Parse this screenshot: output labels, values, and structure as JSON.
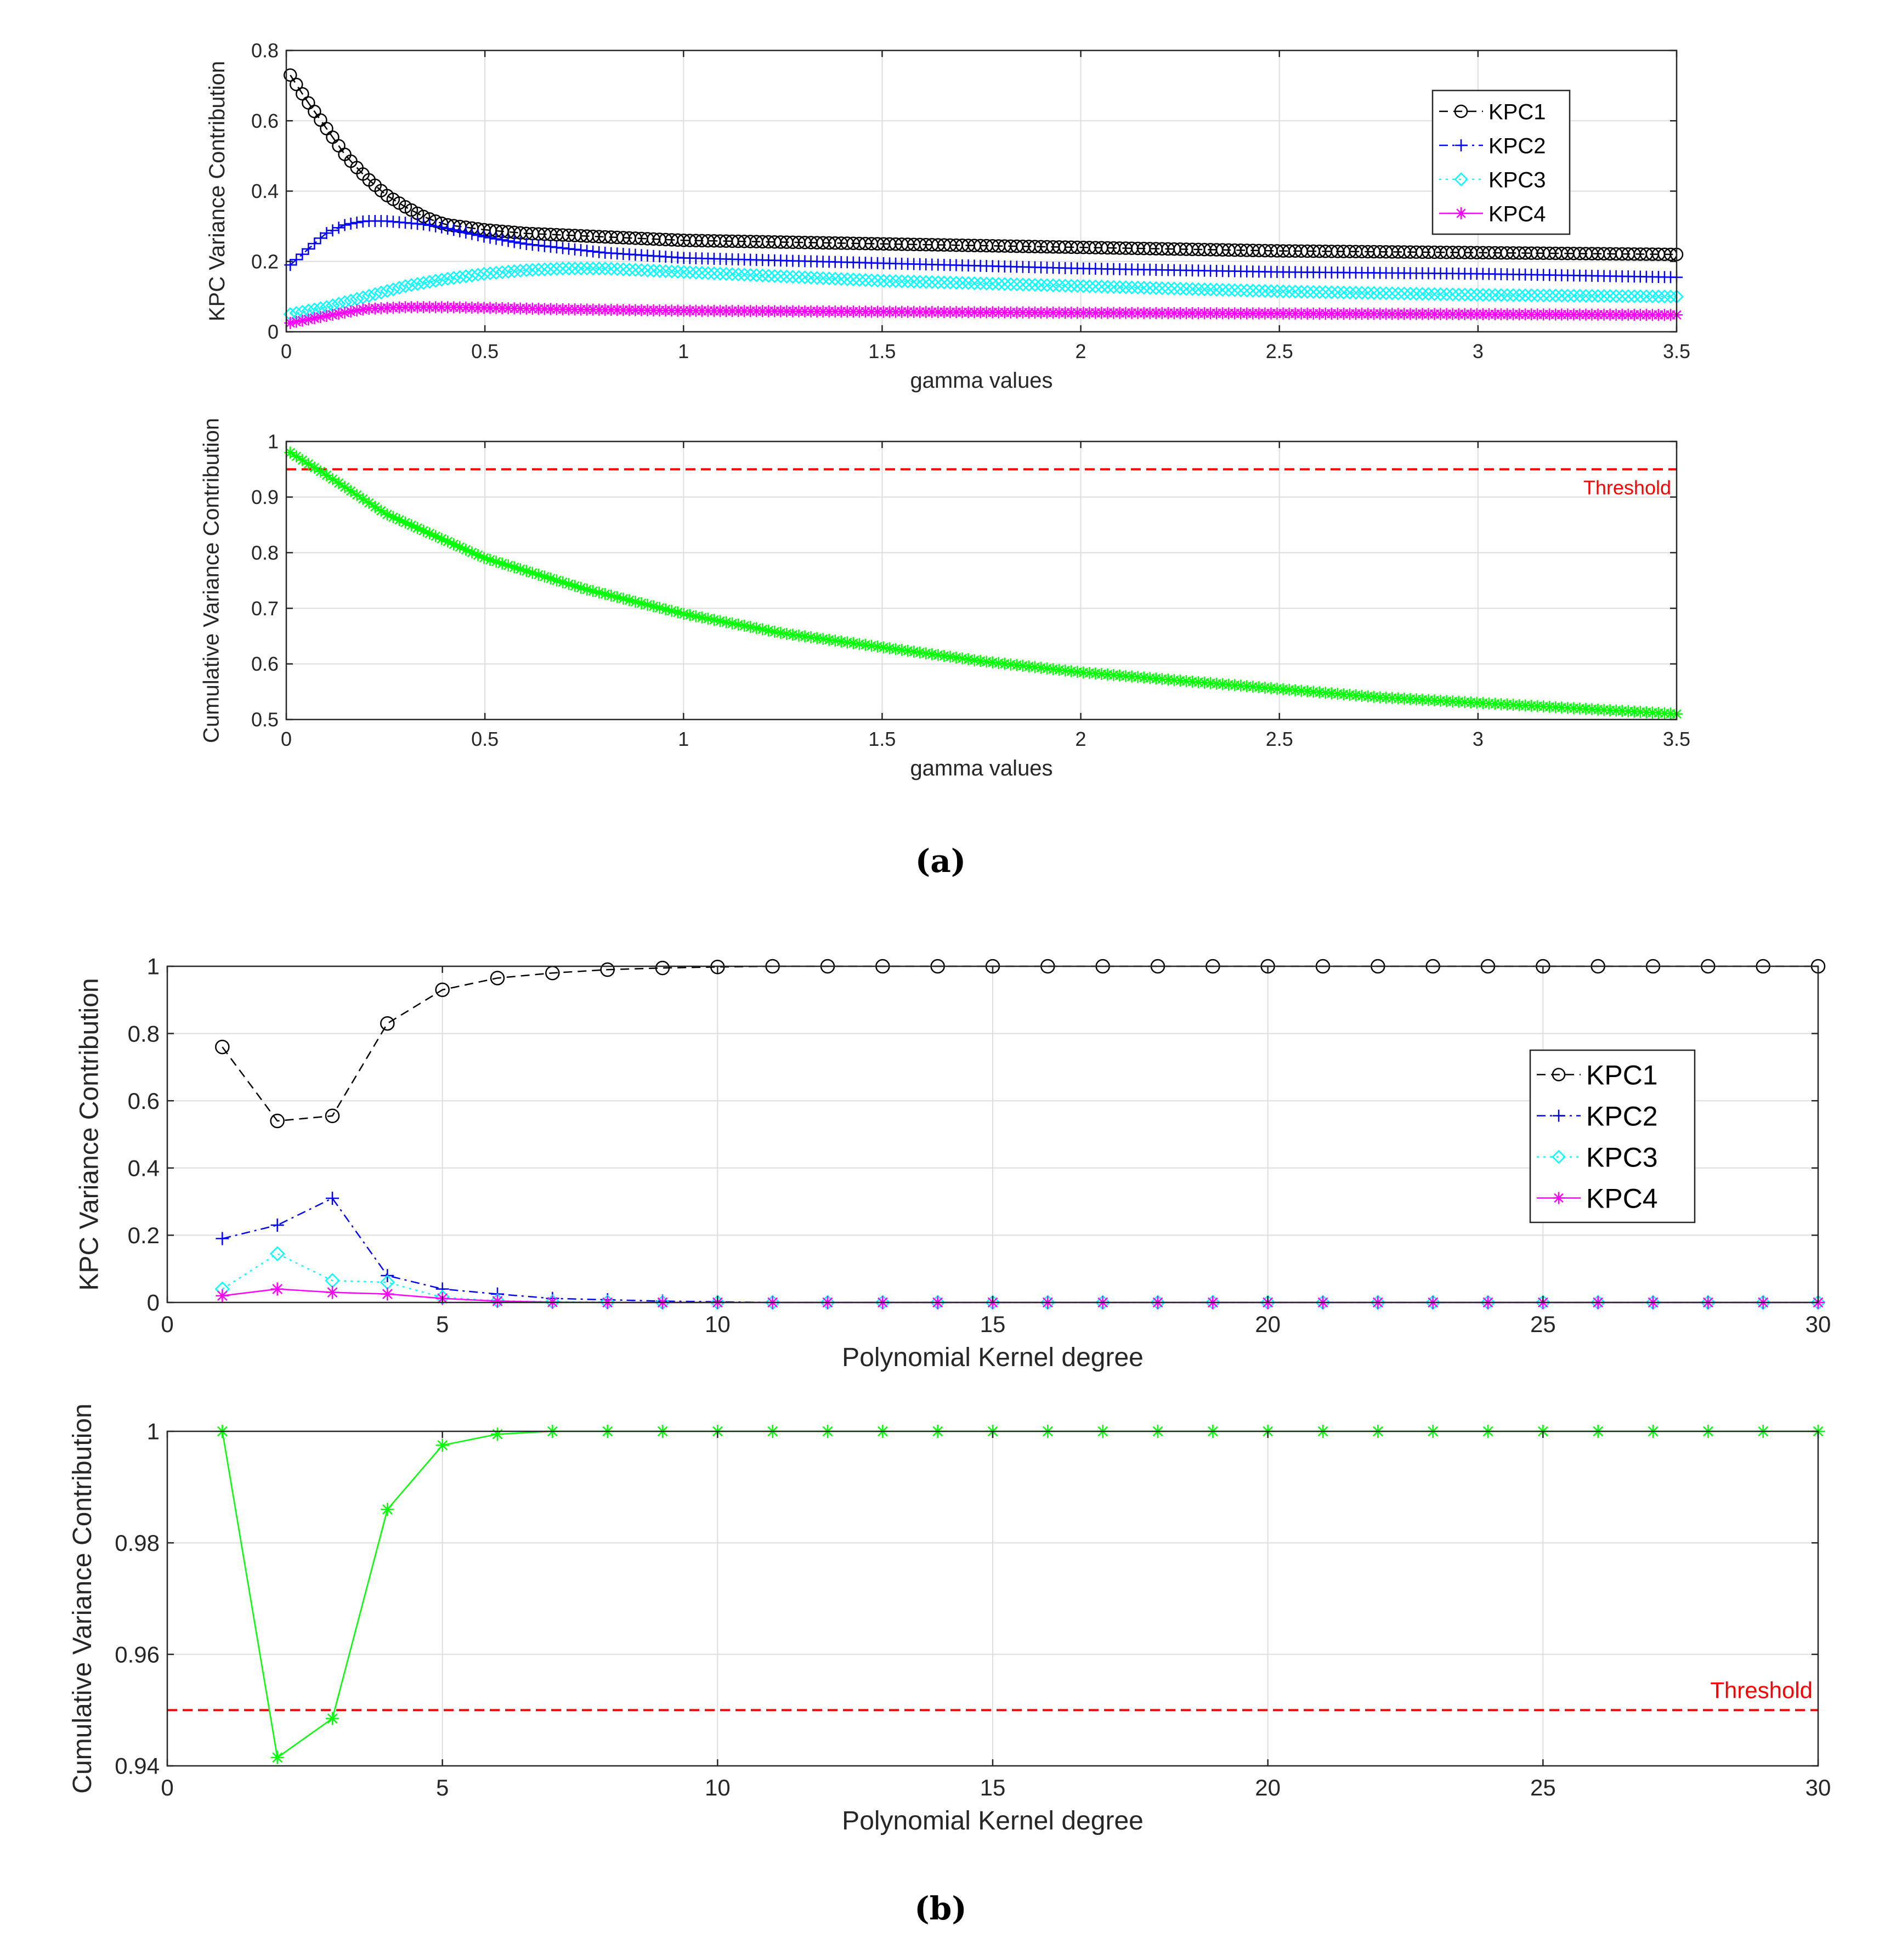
{
  "captions": {
    "a": "(a)",
    "b": "(b)"
  },
  "colors": {
    "kpc1": "#000000",
    "kpc2": "#0000ff",
    "kpc3": "#00ffff",
    "kpc4": "#ff00ff",
    "cumulative": "#00ff00",
    "threshold": "#ff0000"
  },
  "chart_data": [
    {
      "id": "a1",
      "type": "line",
      "title": "",
      "xlabel": "gamma values",
      "ylabel": "KPC Variance Contribution",
      "xlim": [
        0,
        3.5
      ],
      "ylim": [
        0,
        0.8
      ],
      "xticks": [
        0,
        0.5,
        1,
        1.5,
        2,
        2.5,
        3,
        3.5
      ],
      "xticklabels": [
        "0",
        "0.5",
        "1",
        "1.5",
        "2",
        "2.5",
        "3",
        "3.5"
      ],
      "yticks": [
        0,
        0.2,
        0.4,
        0.6,
        0.8
      ],
      "yticklabels": [
        "0",
        "0.2",
        "0.4",
        "0.6",
        "0.8"
      ],
      "grid": true,
      "legend_position": "top-right",
      "dense": true,
      "series": [
        {
          "name": "KPC1",
          "marker": "circle",
          "line": "dashed",
          "color": "#000000",
          "x": [
            0.01,
            0.05,
            0.1,
            0.15,
            0.2,
            0.25,
            0.3,
            0.35,
            0.4,
            0.5,
            0.6,
            0.8,
            1.0,
            1.5,
            2.0,
            2.5,
            3.0,
            3.5
          ],
          "y": [
            0.73,
            0.66,
            0.58,
            0.5,
            0.44,
            0.39,
            0.355,
            0.325,
            0.305,
            0.29,
            0.28,
            0.27,
            0.26,
            0.25,
            0.24,
            0.23,
            0.225,
            0.22
          ]
        },
        {
          "name": "KPC2",
          "marker": "plus",
          "line": "dashdot",
          "color": "#0000ff",
          "x": [
            0.01,
            0.05,
            0.1,
            0.15,
            0.2,
            0.25,
            0.3,
            0.35,
            0.4,
            0.5,
            0.6,
            0.8,
            1.0,
            1.5,
            2.0,
            2.5,
            3.0,
            3.5
          ],
          "y": [
            0.19,
            0.23,
            0.28,
            0.305,
            0.315,
            0.315,
            0.31,
            0.305,
            0.295,
            0.27,
            0.25,
            0.225,
            0.21,
            0.195,
            0.18,
            0.17,
            0.165,
            0.155
          ]
        },
        {
          "name": "KPC3",
          "marker": "diamond",
          "line": "dotted",
          "color": "#00ffff",
          "x": [
            0.01,
            0.1,
            0.2,
            0.3,
            0.4,
            0.5,
            0.6,
            0.7,
            0.8,
            1.0,
            1.5,
            2.0,
            2.5,
            3.0,
            3.5
          ],
          "y": [
            0.05,
            0.07,
            0.1,
            0.13,
            0.15,
            0.165,
            0.175,
            0.18,
            0.18,
            0.17,
            0.145,
            0.13,
            0.115,
            0.105,
            0.1
          ]
        },
        {
          "name": "KPC4",
          "marker": "asterisk",
          "line": "solid",
          "color": "#ff00ff",
          "x": [
            0.01,
            0.1,
            0.2,
            0.3,
            0.4,
            0.5,
            0.7,
            1.0,
            1.5,
            2.0,
            2.5,
            3.0,
            3.5
          ],
          "y": [
            0.025,
            0.045,
            0.065,
            0.07,
            0.07,
            0.068,
            0.064,
            0.06,
            0.057,
            0.054,
            0.052,
            0.05,
            0.048
          ]
        }
      ]
    },
    {
      "id": "a2",
      "type": "line",
      "title": "",
      "xlabel": "gamma values",
      "ylabel": "Cumulative Variance Contribution",
      "xlim": [
        0,
        3.5
      ],
      "ylim": [
        0.5,
        1
      ],
      "xticks": [
        0,
        0.5,
        1,
        1.5,
        2,
        2.5,
        3,
        3.5
      ],
      "xticklabels": [
        "0",
        "0.5",
        "1",
        "1.5",
        "2",
        "2.5",
        "3",
        "3.5"
      ],
      "yticks": [
        0.5,
        0.6,
        0.7,
        0.8,
        0.9,
        1
      ],
      "yticklabels": [
        "0.5",
        "0.6",
        "0.7",
        "0.8",
        "0.9",
        "1"
      ],
      "grid": true,
      "dense": true,
      "threshold": {
        "value": 0.95,
        "label": "Threshold"
      },
      "series": [
        {
          "name": "Cumulative",
          "marker": "asterisk",
          "line": "solid",
          "color": "#00ff00",
          "x": [
            0.01,
            0.1,
            0.25,
            0.5,
            0.75,
            1.0,
            1.25,
            1.5,
            1.75,
            2.0,
            2.25,
            2.5,
            2.75,
            3.0,
            3.25,
            3.5
          ],
          "y": [
            0.98,
            0.94,
            0.87,
            0.79,
            0.735,
            0.69,
            0.655,
            0.63,
            0.605,
            0.585,
            0.57,
            0.555,
            0.54,
            0.53,
            0.52,
            0.51
          ]
        }
      ]
    },
    {
      "id": "b1",
      "type": "line",
      "title": "",
      "xlabel": "Polynomial Kernel degree",
      "ylabel": "KPC Variance Contribution",
      "xlim": [
        0,
        30
      ],
      "ylim": [
        0,
        1
      ],
      "xticks": [
        0,
        5,
        10,
        15,
        20,
        25,
        30
      ],
      "xticklabels": [
        "0",
        "5",
        "10",
        "15",
        "20",
        "25",
        "30"
      ],
      "yticks": [
        0,
        0.2,
        0.4,
        0.6,
        0.8,
        1
      ],
      "yticklabels": [
        "0",
        "0.2",
        "0.4",
        "0.6",
        "0.8",
        "1"
      ],
      "grid": true,
      "legend_position": "middle-right",
      "dense": false,
      "series": [
        {
          "name": "KPC1",
          "marker": "circle",
          "line": "dashed",
          "color": "#000000",
          "x": [
            1,
            2,
            3,
            4,
            5,
            6,
            7,
            8,
            9,
            10,
            11,
            12,
            13,
            14,
            15,
            16,
            17,
            18,
            19,
            20,
            21,
            22,
            23,
            24,
            25,
            26,
            27,
            28,
            29,
            30
          ],
          "y": [
            0.76,
            0.54,
            0.555,
            0.83,
            0.93,
            0.965,
            0.98,
            0.99,
            0.995,
            0.998,
            1,
            1,
            1,
            1,
            1,
            1,
            1,
            1,
            1,
            1,
            1,
            1,
            1,
            1,
            1,
            1,
            1,
            1,
            1,
            1
          ]
        },
        {
          "name": "KPC2",
          "marker": "plus",
          "line": "dashdot",
          "color": "#0000ff",
          "x": [
            1,
            2,
            3,
            4,
            5,
            6,
            7,
            8,
            9,
            10,
            11,
            12,
            13,
            14,
            15,
            16,
            17,
            18,
            19,
            20,
            21,
            22,
            23,
            24,
            25,
            26,
            27,
            28,
            29,
            30
          ],
          "y": [
            0.19,
            0.23,
            0.31,
            0.08,
            0.04,
            0.025,
            0.012,
            0.008,
            0.004,
            0.002,
            0,
            0,
            0,
            0,
            0,
            0,
            0,
            0,
            0,
            0,
            0,
            0,
            0,
            0,
            0,
            0,
            0,
            0,
            0,
            0
          ]
        },
        {
          "name": "KPC3",
          "marker": "diamond",
          "line": "dotted",
          "color": "#00ffff",
          "x": [
            1,
            2,
            3,
            4,
            5,
            6,
            7,
            8,
            9,
            10,
            11,
            12,
            13,
            14,
            15,
            16,
            17,
            18,
            19,
            20,
            21,
            22,
            23,
            24,
            25,
            26,
            27,
            28,
            29,
            30
          ],
          "y": [
            0.04,
            0.145,
            0.065,
            0.06,
            0.015,
            0.005,
            0.002,
            0.001,
            0,
            0,
            0,
            0,
            0,
            0,
            0,
            0,
            0,
            0,
            0,
            0,
            0,
            0,
            0,
            0,
            0,
            0,
            0,
            0,
            0,
            0
          ]
        },
        {
          "name": "KPC4",
          "marker": "asterisk",
          "line": "solid",
          "color": "#ff00ff",
          "x": [
            1,
            2,
            3,
            4,
            5,
            6,
            7,
            8,
            9,
            10,
            11,
            12,
            13,
            14,
            15,
            16,
            17,
            18,
            19,
            20,
            21,
            22,
            23,
            24,
            25,
            26,
            27,
            28,
            29,
            30
          ],
          "y": [
            0.02,
            0.04,
            0.03,
            0.025,
            0.012,
            0.004,
            0.001,
            0,
            0,
            0,
            0,
            0,
            0,
            0,
            0,
            0,
            0,
            0,
            0,
            0,
            0,
            0,
            0,
            0,
            0,
            0,
            0,
            0,
            0,
            0
          ]
        }
      ]
    },
    {
      "id": "b2",
      "type": "line",
      "title": "",
      "xlabel": "Polynomial Kernel degree",
      "ylabel": "Cumulative Variance Contribution",
      "xlim": [
        0,
        30
      ],
      "ylim": [
        0.94,
        1
      ],
      "xticks": [
        0,
        5,
        10,
        15,
        20,
        25,
        30
      ],
      "xticklabels": [
        "0",
        "5",
        "10",
        "15",
        "20",
        "25",
        "30"
      ],
      "yticks": [
        0.94,
        0.96,
        0.98,
        1
      ],
      "yticklabels": [
        "0.94",
        "0.96",
        "0.98",
        "1"
      ],
      "grid": true,
      "dense": false,
      "threshold": {
        "value": 0.95,
        "label": "Threshold"
      },
      "series": [
        {
          "name": "Cumulative",
          "marker": "asterisk",
          "line": "solid",
          "color": "#00ff00",
          "x": [
            1,
            2,
            3,
            4,
            5,
            6,
            7,
            8,
            9,
            10,
            11,
            12,
            13,
            14,
            15,
            16,
            17,
            18,
            19,
            20,
            21,
            22,
            23,
            24,
            25,
            26,
            27,
            28,
            29,
            30
          ],
          "y": [
            1,
            0.9415,
            0.9485,
            0.986,
            0.9975,
            0.9995,
            1,
            1,
            1,
            1,
            1,
            1,
            1,
            1,
            1,
            1,
            1,
            1,
            1,
            1,
            1,
            1,
            1,
            1,
            1,
            1,
            1,
            1,
            1,
            1
          ]
        }
      ]
    }
  ]
}
